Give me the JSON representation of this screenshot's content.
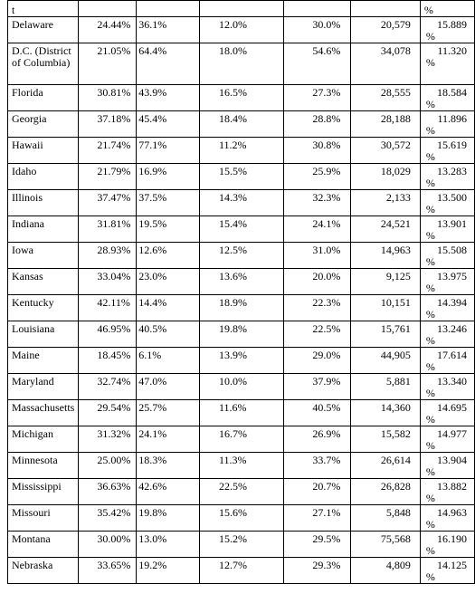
{
  "header_fragment": {
    "state_cell": "t",
    "last_cell_suffix": "%"
  },
  "rows": [
    {
      "state": "Delaware",
      "c1": "24.44%",
      "c2": "36.1%",
      "c3": "12.0%",
      "c4": "30.0%",
      "c5": "20,579",
      "c6": "15.889",
      "pct": "%"
    },
    {
      "state": "D.C. (District of Columbia)",
      "c1": "21.05%",
      "c2": "64.4%",
      "c3": "18.0%",
      "c4": "54.6%",
      "c5": "34,078",
      "c6": "11.320",
      "pct": "%"
    },
    {
      "state": "Florida",
      "c1": "30.81%",
      "c2": "43.9%",
      "c3": "16.5%",
      "c4": "27.3%",
      "c5": "28,555",
      "c6": "18.584",
      "pct": "%"
    },
    {
      "state": "Georgia",
      "c1": "37.18%",
      "c2": "45.4%",
      "c3": "18.4%",
      "c4": "28.8%",
      "c5": "28,188",
      "c6": "11.896",
      "pct": "%"
    },
    {
      "state": "Hawaii",
      "c1": "21.74%",
      "c2": "77.1%",
      "c3": "11.2%",
      "c4": "30.8%",
      "c5": "30,572",
      "c6": "15.619",
      "pct": "%"
    },
    {
      "state": "Idaho",
      "c1": "21.79%",
      "c2": "16.9%",
      "c3": "15.5%",
      "c4": "25.9%",
      "c5": "18,029",
      "c6": "13.283",
      "pct": "%"
    },
    {
      "state": "Illinois",
      "c1": "37.47%",
      "c2": "37.5%",
      "c3": "14.3%",
      "c4": "32.3%",
      "c5": "2,133",
      "c6": "13.500",
      "pct": "%"
    },
    {
      "state": "Indiana",
      "c1": "31.81%",
      "c2": "19.5%",
      "c3": "15.4%",
      "c4": "24.1%",
      "c5": "24,521",
      "c6": "13.901",
      "pct": "%"
    },
    {
      "state": "Iowa",
      "c1": "28.93%",
      "c2": "12.6%",
      "c3": "12.5%",
      "c4": "31.0%",
      "c5": "14,963",
      "c6": "15.508",
      "pct": "%"
    },
    {
      "state": "Kansas",
      "c1": "33.04%",
      "c2": "23.0%",
      "c3": "13.6%",
      "c4": "20.0%",
      "c5": "9,125",
      "c6": "13.975",
      "pct": "%"
    },
    {
      "state": "Kentucky",
      "c1": "42.11%",
      "c2": "14.4%",
      "c3": "18.9%",
      "c4": "22.3%",
      "c5": "10,151",
      "c6": "14.394",
      "pct": "%"
    },
    {
      "state": "Louisiana",
      "c1": "46.95%",
      "c2": "40.5%",
      "c3": "19.8%",
      "c4": "22.5%",
      "c5": "15,761",
      "c6": "13.246",
      "pct": "%"
    },
    {
      "state": "Maine",
      "c1": "18.45%",
      "c2": "6.1%",
      "c3": "13.9%",
      "c4": "29.0%",
      "c5": "44,905",
      "c6": "17.614",
      "pct": "%"
    },
    {
      "state": "Maryland",
      "c1": "32.74%",
      "c2": "47.0%",
      "c3": "10.0%",
      "c4": "37.9%",
      "c5": "5,881",
      "c6": "13.340",
      "pct": "%"
    },
    {
      "state": "Massachusetts",
      "c1": "29.54%",
      "c2": "25.7%",
      "c3": "11.6%",
      "c4": "40.5%",
      "c5": "14,360",
      "c6": "14.695",
      "pct": "%"
    },
    {
      "state": "Michigan",
      "c1": "31.32%",
      "c2": "24.1%",
      "c3": "16.7%",
      "c4": "26.9%",
      "c5": "15,582",
      "c6": "14.977",
      "pct": "%"
    },
    {
      "state": "Minnesota",
      "c1": "25.00%",
      "c2": "18.3%",
      "c3": "11.3%",
      "c4": "33.7%",
      "c5": "26,614",
      "c6": "13.904",
      "pct": "%"
    },
    {
      "state": "Mississippi",
      "c1": "36.63%",
      "c2": "42.6%",
      "c3": "22.5%",
      "c4": "20.7%",
      "c5": "26,828",
      "c6": "13.882",
      "pct": "%"
    },
    {
      "state": "Missouri",
      "c1": "35.42%",
      "c2": "19.8%",
      "c3": "15.6%",
      "c4": "27.1%",
      "c5": "5,848",
      "c6": "14.963",
      "pct": "%"
    },
    {
      "state": "Montana",
      "c1": "30.00%",
      "c2": "13.0%",
      "c3": "15.2%",
      "c4": "29.5%",
      "c5": "75,568",
      "c6": "16.190",
      "pct": "%"
    },
    {
      "state": "Nebraska",
      "c1": "33.65%",
      "c2": "19.2%",
      "c3": "12.7%",
      "c4": "29.3%",
      "c5": "4,809",
      "c6": "14.125",
      "pct": "%"
    }
  ]
}
